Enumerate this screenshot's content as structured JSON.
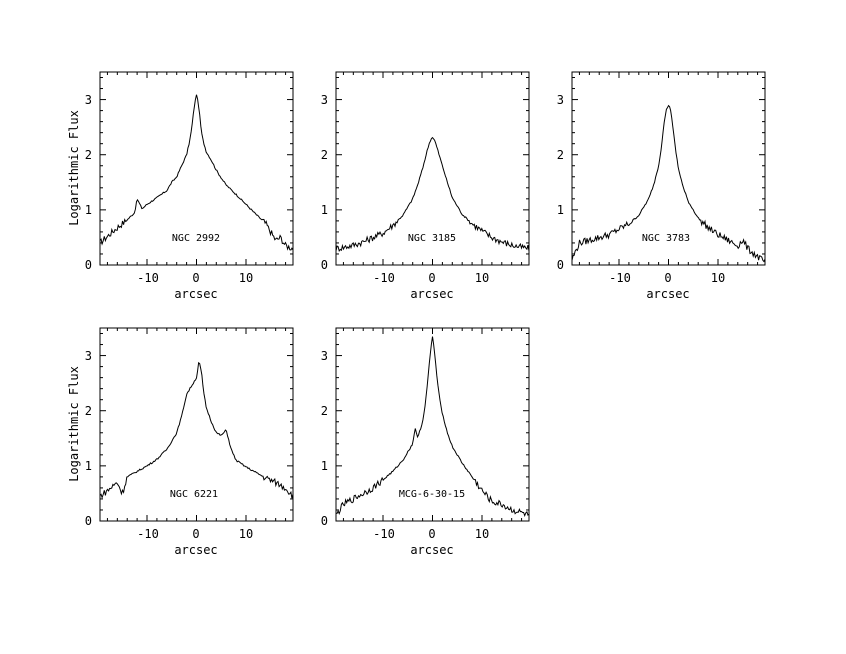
{
  "chart_data": [
    {
      "type": "line",
      "label": "NGC 2992",
      "xlabel": "arcsec",
      "ylabel": "Logarithmic Flux",
      "xlim": [
        -19.5,
        19.5
      ],
      "ylim": [
        0,
        3.5
      ],
      "xticks": [
        -10,
        0,
        10
      ],
      "yticks": [
        0,
        1,
        2,
        3
      ],
      "peak": 3.1,
      "x": [
        -19.5,
        -18,
        -16,
        -14,
        -12.5,
        -12,
        -11,
        -10,
        -8,
        -6,
        -5,
        -4,
        -3,
        -2,
        -1.5,
        -1,
        -0.5,
        0,
        0.5,
        1,
        1.5,
        2,
        3,
        4,
        5,
        6,
        8,
        10,
        12,
        14,
        15,
        16,
        17,
        18,
        19.5
      ],
      "y": [
        0.4,
        0.52,
        0.68,
        0.82,
        0.95,
        1.2,
        1.02,
        1.1,
        1.22,
        1.35,
        1.5,
        1.6,
        1.8,
        2.0,
        2.2,
        2.45,
        2.85,
        3.1,
        2.85,
        2.4,
        2.2,
        2.05,
        1.9,
        1.72,
        1.58,
        1.45,
        1.28,
        1.1,
        0.92,
        0.75,
        0.6,
        0.45,
        0.5,
        0.35,
        0.3
      ]
    },
    {
      "type": "line",
      "label": "NGC 3185",
      "xlabel": "arcsec",
      "ylabel": "",
      "xlim": [
        -19.5,
        19.5
      ],
      "ylim": [
        0,
        3.5
      ],
      "xticks": [
        -10,
        0,
        10
      ],
      "yticks": [
        0,
        1,
        2,
        3
      ],
      "peak": 2.32,
      "x": [
        -19.5,
        -18,
        -16,
        -14,
        -12,
        -10,
        -8,
        -6,
        -4,
        -3,
        -2,
        -1,
        -0.5,
        0,
        0.5,
        1,
        2,
        3,
        4,
        6,
        8,
        10,
        12,
        14,
        16,
        18,
        19.5
      ],
      "y": [
        0.3,
        0.32,
        0.36,
        0.42,
        0.5,
        0.58,
        0.72,
        0.9,
        1.2,
        1.45,
        1.75,
        2.1,
        2.25,
        2.32,
        2.25,
        2.1,
        1.8,
        1.5,
        1.22,
        0.92,
        0.75,
        0.62,
        0.5,
        0.42,
        0.36,
        0.32,
        0.3
      ]
    },
    {
      "type": "line",
      "label": "NGC 3783",
      "xlabel": "arcsec",
      "ylabel": "",
      "xlim": [
        -19.5,
        19.5
      ],
      "ylim": [
        0,
        3.5
      ],
      "xticks": [
        -10,
        0,
        10
      ],
      "yticks": [
        0,
        1,
        2,
        3
      ],
      "peak": 2.9,
      "x": [
        -19.5,
        -18,
        -16,
        -14,
        -12,
        -10,
        -8,
        -6,
        -4,
        -3,
        -2,
        -1.5,
        -1,
        -0.5,
        0,
        0.5,
        1,
        1.5,
        2,
        3,
        4,
        6,
        8,
        10,
        12,
        14,
        15,
        16,
        18,
        19.5
      ],
      "y": [
        0.1,
        0.4,
        0.45,
        0.5,
        0.55,
        0.65,
        0.75,
        0.9,
        1.2,
        1.45,
        1.8,
        2.1,
        2.5,
        2.8,
        2.9,
        2.8,
        2.4,
        2.05,
        1.75,
        1.4,
        1.15,
        0.85,
        0.68,
        0.55,
        0.45,
        0.35,
        0.45,
        0.3,
        0.15,
        0.05
      ]
    },
    {
      "type": "line",
      "label": "NGC 6221",
      "xlabel": "arcsec",
      "ylabel": "Logarithmic Flux",
      "xlim": [
        -19.5,
        19.5
      ],
      "ylim": [
        0,
        3.5
      ],
      "xticks": [
        -10,
        0,
        10
      ],
      "yticks": [
        0,
        1,
        2,
        3
      ],
      "peak": 2.9,
      "x": [
        -19.5,
        -18,
        -16,
        -15,
        -14,
        -12,
        -10,
        -8,
        -6,
        -4,
        -3,
        -2,
        -1,
        0,
        0.5,
        1,
        1.5,
        2,
        3,
        4,
        5,
        6,
        7,
        8,
        10,
        12,
        14,
        16,
        18,
        19.5
      ],
      "y": [
        0.45,
        0.55,
        0.7,
        0.5,
        0.8,
        0.9,
        1.0,
        1.12,
        1.3,
        1.6,
        1.9,
        2.3,
        2.45,
        2.6,
        2.9,
        2.7,
        2.3,
        2.05,
        1.8,
        1.6,
        1.55,
        1.65,
        1.3,
        1.1,
        0.98,
        0.88,
        0.78,
        0.7,
        0.6,
        0.45
      ]
    },
    {
      "type": "line",
      "label": "MCG-6-30-15",
      "xlabel": "arcsec",
      "ylabel": "",
      "xlim": [
        -19.5,
        19.5
      ],
      "ylim": [
        0,
        3.5
      ],
      "xticks": [
        -10,
        0,
        10
      ],
      "yticks": [
        0,
        1,
        2,
        3
      ],
      "peak": 3.35,
      "x": [
        -19.5,
        -18,
        -16,
        -14,
        -12,
        -10,
        -8,
        -6,
        -4,
        -3.5,
        -3,
        -2,
        -1.5,
        -1,
        -0.5,
        0,
        0.5,
        1,
        1.5,
        2,
        3,
        4,
        6,
        8,
        10,
        12,
        14,
        16,
        18,
        19.5
      ],
      "y": [
        0.1,
        0.3,
        0.4,
        0.5,
        0.6,
        0.75,
        0.9,
        1.1,
        1.4,
        1.7,
        1.5,
        1.8,
        2.1,
        2.5,
        3.0,
        3.35,
        3.0,
        2.5,
        2.2,
        1.95,
        1.6,
        1.35,
        1.05,
        0.8,
        0.55,
        0.35,
        0.3,
        0.2,
        0.15,
        0.1
      ]
    }
  ]
}
